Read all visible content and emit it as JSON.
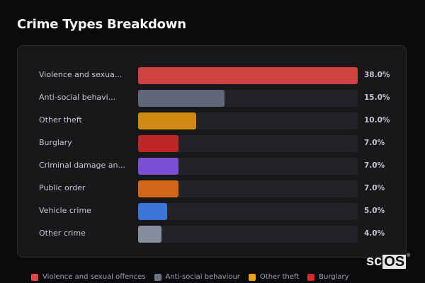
{
  "title": "Crime Types Breakdown",
  "chart_data": {
    "type": "bar",
    "orientation": "horizontal",
    "title": "Crime Types Breakdown",
    "categories": [
      "Violence and sexual offences",
      "Anti-social behaviour",
      "Other theft",
      "Burglary",
      "Criminal damage and arson",
      "Public order",
      "Vehicle crime",
      "Other crime"
    ],
    "display_labels": [
      "Violence and sexua...",
      "Anti-social behavi...",
      "Other theft",
      "Burglary",
      "Criminal damage an...",
      "Public order",
      "Vehicle crime",
      "Other crime"
    ],
    "values": [
      38.0,
      15.0,
      10.0,
      7.0,
      7.0,
      7.0,
      5.0,
      4.0
    ],
    "value_labels": [
      "38.0%",
      "15.0%",
      "10.0%",
      "7.0%",
      "7.0%",
      "7.0%",
      "5.0%",
      "4.0%"
    ],
    "colors": [
      "#d04242",
      "#5e6878",
      "#d08a12",
      "#bf2626",
      "#7a4fd6",
      "#d4661a",
      "#3a76d8",
      "#858e9c"
    ],
    "xlim": [
      0,
      38
    ],
    "grid": false,
    "legend_position": "bottom"
  },
  "legend": [
    {
      "label": "Violence and sexual offences",
      "color": "#e04848"
    },
    {
      "label": "Anti-social behaviour",
      "color": "#6b7588"
    },
    {
      "label": "Other theft",
      "color": "#eaa017"
    },
    {
      "label": "Burglary",
      "color": "#d42b2b"
    }
  ],
  "watermark": {
    "left": "sc",
    "boxed": "OS",
    "mark": "®"
  }
}
